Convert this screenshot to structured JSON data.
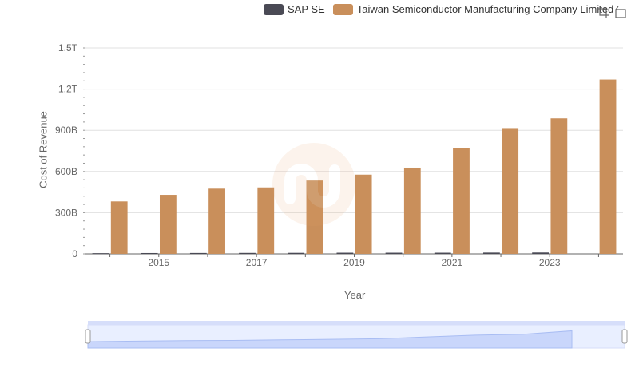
{
  "legend": {
    "items": [
      {
        "name": "SAP SE",
        "color": "#4a4a55"
      },
      {
        "name": "Taiwan Semiconductor Manufacturing Company Limited",
        "color": "#c98f5b"
      }
    ]
  },
  "toolbox": {
    "icons": [
      "zoom-select-icon",
      "zoom-reset-icon"
    ]
  },
  "chart_data": {
    "type": "bar",
    "categories": [
      "2014",
      "2015",
      "2016",
      "2017",
      "2018",
      "2019",
      "2020",
      "2021",
      "2022",
      "2023",
      "2024"
    ],
    "x_tick_labels": [
      "2015",
      "2017",
      "2019",
      "2021",
      "2023"
    ],
    "xlabel": "Year",
    "ylabel": "Cost of Revenue",
    "ylim": [
      0,
      1500000000000
    ],
    "y_tick_labels": [
      "0",
      "300B",
      "600B",
      "900B",
      "1.2T",
      "1.5T"
    ],
    "y_tick_values": [
      0,
      300000000000,
      600000000000,
      900000000000,
      1200000000000,
      1500000000000
    ],
    "grid": true,
    "legend_position": "top-right",
    "series": [
      {
        "name": "SAP SE",
        "color": "#4a4a55",
        "values": [
          5000000000,
          6000000000,
          6500000000,
          7000000000,
          7500000000,
          8500000000,
          8500000000,
          8500000000,
          9500000000,
          10000000000,
          null
        ]
      },
      {
        "name": "Taiwan Semiconductor Manufacturing Company Limited",
        "color": "#c98f5b",
        "values": [
          382000000000,
          430000000000,
          475000000000,
          484000000000,
          534000000000,
          577000000000,
          628000000000,
          768000000000,
          916000000000,
          987000000000,
          1270000000000
        ]
      }
    ]
  }
}
